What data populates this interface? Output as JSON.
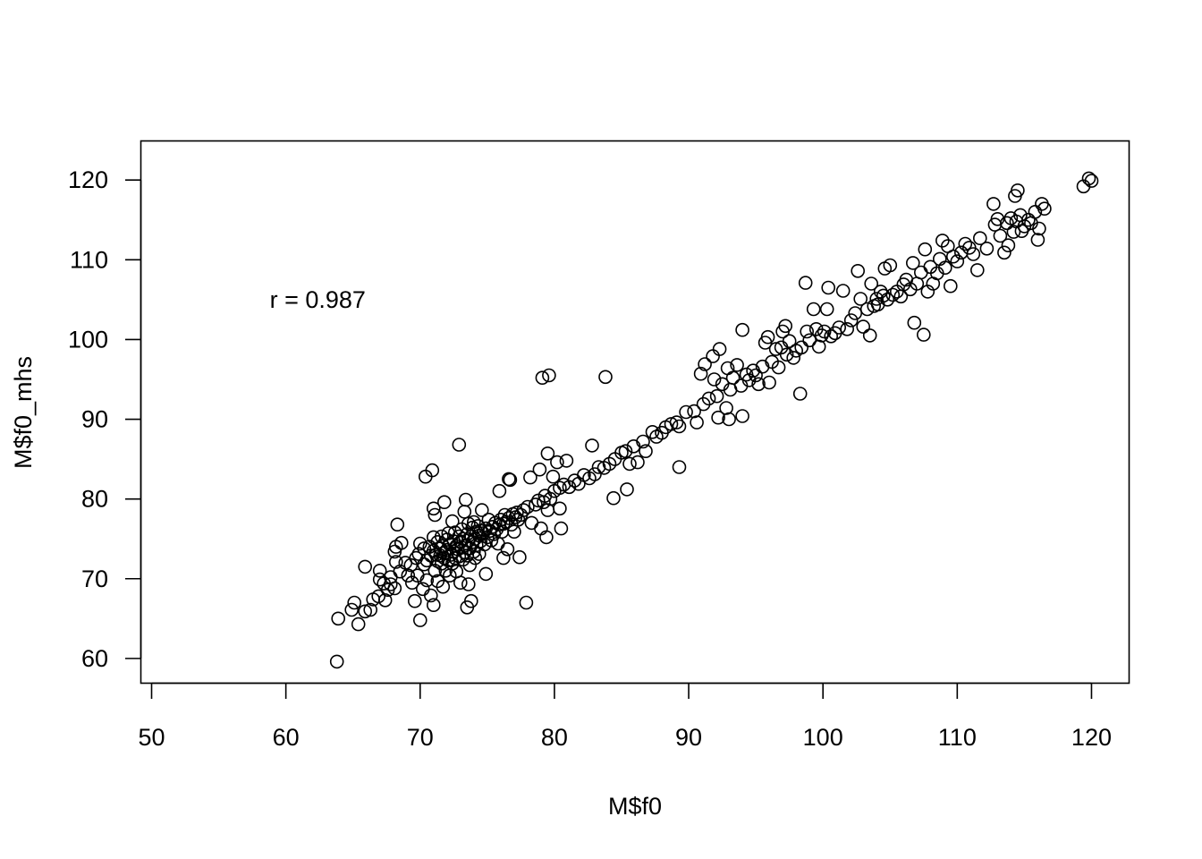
{
  "chart_data": {
    "type": "scatter",
    "title": "",
    "xlabel": "M$f0",
    "ylabel": "M$f0_mhs",
    "xlim": [
      49.2,
      122.8
    ],
    "ylim": [
      56.9,
      124.9
    ],
    "xticks": [
      50,
      60,
      70,
      80,
      90,
      100,
      110,
      120
    ],
    "yticks": [
      60,
      70,
      80,
      90,
      100,
      110,
      120
    ],
    "grid": false,
    "legend": "none",
    "marker": "open-circle",
    "color": "#000000",
    "annotation": {
      "text": "r = 0.987",
      "x": 58.8,
      "y": 105.0
    },
    "points": [
      [
        63.8,
        59.6
      ],
      [
        63.9,
        65.0
      ],
      [
        64.9,
        66.1
      ],
      [
        65.1,
        67.0
      ],
      [
        65.4,
        64.3
      ],
      [
        65.9,
        65.9
      ],
      [
        65.9,
        71.5
      ],
      [
        66.3,
        66.1
      ],
      [
        66.5,
        67.4
      ],
      [
        66.9,
        67.8
      ],
      [
        67.0,
        69.9
      ],
      [
        67.0,
        71.0
      ],
      [
        67.3,
        69.4
      ],
      [
        67.4,
        67.3
      ],
      [
        67.6,
        68.6
      ],
      [
        67.8,
        69.3
      ],
      [
        67.8,
        70.2
      ],
      [
        68.1,
        68.8
      ],
      [
        68.1,
        73.4
      ],
      [
        68.2,
        72.1
      ],
      [
        68.2,
        74.0
      ],
      [
        68.3,
        76.8
      ],
      [
        68.5,
        70.9
      ],
      [
        68.6,
        74.5
      ],
      [
        68.9,
        72.0
      ],
      [
        69.1,
        70.4
      ],
      [
        69.3,
        71.7
      ],
      [
        69.4,
        69.5
      ],
      [
        69.6,
        67.2
      ],
      [
        69.7,
        72.6
      ],
      [
        69.8,
        70.4
      ],
      [
        69.9,
        73.1
      ],
      [
        70.0,
        64.8
      ],
      [
        70.0,
        74.4
      ],
      [
        70.2,
        68.7
      ],
      [
        70.3,
        73.8
      ],
      [
        70.3,
        71.8
      ],
      [
        70.4,
        82.8
      ],
      [
        70.5,
        72.3
      ],
      [
        70.5,
        69.8
      ],
      [
        70.7,
        74.0
      ],
      [
        70.8,
        67.9
      ],
      [
        70.8,
        72.9
      ],
      [
        70.9,
        83.6
      ],
      [
        71.0,
        73.5
      ],
      [
        71.0,
        75.2
      ],
      [
        71.0,
        66.7
      ],
      [
        71.0,
        78.8
      ],
      [
        71.1,
        71.0
      ],
      [
        71.1,
        78.0
      ],
      [
        71.2,
        73.0
      ],
      [
        71.3,
        72.2
      ],
      [
        71.3,
        74.6
      ],
      [
        71.3,
        69.7
      ],
      [
        71.5,
        73.8
      ],
      [
        71.5,
        72.9
      ],
      [
        71.6,
        71.9
      ],
      [
        71.6,
        75.3
      ],
      [
        71.7,
        69.0
      ],
      [
        71.7,
        74.1
      ],
      [
        71.8,
        79.6
      ],
      [
        71.8,
        73.2
      ],
      [
        71.8,
        72.6
      ],
      [
        71.9,
        71.0
      ],
      [
        72.0,
        74.9
      ],
      [
        72.0,
        73.6
      ],
      [
        72.1,
        72.3
      ],
      [
        72.1,
        75.7
      ],
      [
        72.2,
        70.4
      ],
      [
        72.2,
        74.3
      ],
      [
        72.3,
        73.0
      ],
      [
        72.4,
        77.2
      ],
      [
        72.4,
        71.9
      ],
      [
        72.5,
        74.7
      ],
      [
        72.5,
        73.4
      ],
      [
        72.6,
        72.6
      ],
      [
        72.6,
        75.8
      ],
      [
        72.7,
        74.1
      ],
      [
        72.7,
        70.9
      ],
      [
        72.8,
        73.7
      ],
      [
        72.9,
        86.8
      ],
      [
        72.9,
        75.3
      ],
      [
        72.9,
        72.8
      ],
      [
        73.0,
        74.6
      ],
      [
        73.0,
        69.5
      ],
      [
        73.1,
        73.9
      ],
      [
        73.1,
        76.2
      ],
      [
        73.2,
        72.4
      ],
      [
        73.2,
        75.0
      ],
      [
        73.3,
        73.3
      ],
      [
        73.3,
        78.4
      ],
      [
        73.4,
        74.2
      ],
      [
        73.4,
        79.9
      ],
      [
        73.5,
        72.9
      ],
      [
        73.5,
        75.6
      ],
      [
        73.5,
        66.4
      ],
      [
        73.6,
        74.8
      ],
      [
        73.6,
        69.3
      ],
      [
        73.6,
        76.9
      ],
      [
        73.7,
        73.8
      ],
      [
        73.7,
        71.7
      ],
      [
        73.8,
        75.3
      ],
      [
        73.8,
        67.2
      ],
      [
        73.9,
        74.6
      ],
      [
        73.9,
        76.4
      ],
      [
        74.0,
        73.4
      ],
      [
        74.0,
        77.1
      ],
      [
        74.1,
        75.0
      ],
      [
        74.1,
        72.6
      ],
      [
        74.2,
        75.9
      ],
      [
        74.2,
        74.2
      ],
      [
        74.3,
        76.6
      ],
      [
        74.4,
        75.4
      ],
      [
        74.4,
        73.1
      ],
      [
        74.5,
        76.0
      ],
      [
        74.5,
        74.7
      ],
      [
        74.6,
        78.6
      ],
      [
        74.7,
        75.7
      ],
      [
        74.8,
        74.3
      ],
      [
        74.9,
        76.3
      ],
      [
        74.9,
        70.6
      ],
      [
        75.0,
        75.2
      ],
      [
        75.1,
        77.4
      ],
      [
        75.2,
        76.0
      ],
      [
        75.3,
        74.8
      ],
      [
        75.4,
        76.5
      ],
      [
        75.5,
        75.6
      ],
      [
        75.6,
        77.0
      ],
      [
        75.7,
        76.2
      ],
      [
        75.8,
        74.4
      ],
      [
        75.9,
        81.0
      ],
      [
        75.9,
        76.8
      ],
      [
        76.0,
        77.4
      ],
      [
        76.1,
        75.9
      ],
      [
        76.2,
        72.6
      ],
      [
        76.2,
        76.9
      ],
      [
        76.3,
        78.0
      ],
      [
        76.4,
        77.1
      ],
      [
        76.5,
        73.7
      ],
      [
        76.6,
        82.5
      ],
      [
        76.6,
        77.6
      ],
      [
        76.7,
        82.4
      ],
      [
        76.8,
        76.8
      ],
      [
        76.9,
        78.1
      ],
      [
        77.0,
        75.9
      ],
      [
        77.1,
        77.7
      ],
      [
        77.2,
        78.3
      ],
      [
        77.3,
        77.4
      ],
      [
        77.4,
        72.7
      ],
      [
        77.5,
        78.0
      ],
      [
        77.7,
        78.6
      ],
      [
        77.9,
        67.0
      ],
      [
        78.0,
        79.0
      ],
      [
        78.2,
        82.7
      ],
      [
        78.3,
        77.0
      ],
      [
        78.6,
        79.3
      ],
      [
        78.8,
        79.8
      ],
      [
        78.9,
        83.7
      ],
      [
        79.0,
        76.3
      ],
      [
        79.1,
        95.2
      ],
      [
        79.2,
        79.6
      ],
      [
        79.3,
        80.4
      ],
      [
        79.4,
        75.2
      ],
      [
        79.5,
        85.7
      ],
      [
        79.5,
        78.6
      ],
      [
        79.6,
        95.5
      ],
      [
        79.7,
        80.0
      ],
      [
        79.9,
        82.8
      ],
      [
        80.0,
        81.0
      ],
      [
        80.2,
        84.6
      ],
      [
        80.4,
        81.4
      ],
      [
        80.4,
        78.8
      ],
      [
        80.5,
        76.3
      ],
      [
        80.7,
        81.8
      ],
      [
        80.9,
        84.8
      ],
      [
        81.1,
        81.5
      ],
      [
        81.5,
        82.3
      ],
      [
        81.8,
        81.9
      ],
      [
        82.2,
        83.0
      ],
      [
        82.6,
        82.6
      ],
      [
        82.8,
        86.7
      ],
      [
        83.0,
        83.1
      ],
      [
        83.3,
        84.0
      ],
      [
        83.7,
        83.9
      ],
      [
        83.8,
        95.3
      ],
      [
        84.1,
        84.4
      ],
      [
        84.4,
        80.1
      ],
      [
        84.5,
        85.0
      ],
      [
        85.0,
        85.8
      ],
      [
        85.3,
        86.0
      ],
      [
        85.4,
        81.2
      ],
      [
        85.6,
        84.4
      ],
      [
        85.9,
        86.6
      ],
      [
        86.2,
        84.6
      ],
      [
        86.6,
        87.2
      ],
      [
        86.8,
        86.0
      ],
      [
        87.3,
        88.4
      ],
      [
        87.6,
        87.8
      ],
      [
        88.0,
        88.3
      ],
      [
        88.3,
        89.0
      ],
      [
        88.7,
        89.4
      ],
      [
        89.1,
        89.6
      ],
      [
        89.3,
        84.0
      ],
      [
        89.3,
        89.1
      ],
      [
        89.8,
        90.9
      ],
      [
        90.4,
        91.0
      ],
      [
        90.6,
        89.6
      ],
      [
        90.9,
        95.7
      ],
      [
        91.1,
        91.9
      ],
      [
        91.2,
        96.9
      ],
      [
        91.5,
        92.6
      ],
      [
        91.8,
        97.9
      ],
      [
        91.9,
        95.0
      ],
      [
        92.1,
        92.9
      ],
      [
        92.2,
        90.2
      ],
      [
        92.3,
        98.8
      ],
      [
        92.5,
        94.4
      ],
      [
        92.8,
        91.4
      ],
      [
        92.9,
        96.4
      ],
      [
        93.0,
        90.0
      ],
      [
        93.1,
        93.7
      ],
      [
        93.3,
        95.2
      ],
      [
        93.6,
        96.8
      ],
      [
        93.9,
        94.2
      ],
      [
        94.0,
        90.4
      ],
      [
        94.0,
        101.2
      ],
      [
        94.3,
        95.6
      ],
      [
        94.5,
        94.9
      ],
      [
        94.8,
        96.1
      ],
      [
        95.0,
        95.5
      ],
      [
        95.2,
        94.4
      ],
      [
        95.5,
        96.6
      ],
      [
        95.7,
        99.6
      ],
      [
        95.9,
        100.3
      ],
      [
        96.0,
        94.6
      ],
      [
        96.2,
        97.2
      ],
      [
        96.5,
        98.8
      ],
      [
        96.7,
        96.5
      ],
      [
        96.9,
        99.0
      ],
      [
        97.0,
        101.0
      ],
      [
        97.2,
        101.7
      ],
      [
        97.3,
        98.1
      ],
      [
        97.5,
        99.8
      ],
      [
        97.8,
        97.7
      ],
      [
        98.0,
        98.6
      ],
      [
        98.3,
        93.2
      ],
      [
        98.4,
        99.0
      ],
      [
        98.7,
        107.1
      ],
      [
        98.8,
        101.0
      ],
      [
        99.0,
        99.9
      ],
      [
        99.3,
        103.8
      ],
      [
        99.5,
        101.3
      ],
      [
        99.7,
        99.1
      ],
      [
        99.9,
        100.5
      ],
      [
        100.1,
        101.0
      ],
      [
        100.3,
        103.8
      ],
      [
        100.4,
        106.5
      ],
      [
        100.6,
        100.4
      ],
      [
        100.9,
        100.8
      ],
      [
        101.2,
        101.5
      ],
      [
        101.5,
        106.1
      ],
      [
        101.8,
        101.3
      ],
      [
        102.1,
        102.4
      ],
      [
        102.4,
        103.3
      ],
      [
        102.6,
        108.6
      ],
      [
        102.8,
        105.1
      ],
      [
        103.0,
        101.6
      ],
      [
        103.3,
        103.8
      ],
      [
        103.5,
        100.5
      ],
      [
        103.6,
        107.0
      ],
      [
        103.8,
        104.2
      ],
      [
        104.0,
        105.1
      ],
      [
        104.1,
        104.4
      ],
      [
        104.3,
        106.0
      ],
      [
        104.5,
        105.5
      ],
      [
        104.6,
        108.9
      ],
      [
        104.8,
        105.0
      ],
      [
        105.0,
        109.3
      ],
      [
        105.2,
        105.6
      ],
      [
        105.5,
        106.0
      ],
      [
        105.8,
        105.4
      ],
      [
        106.0,
        106.9
      ],
      [
        106.2,
        107.5
      ],
      [
        106.5,
        106.3
      ],
      [
        106.7,
        109.6
      ],
      [
        106.8,
        102.1
      ],
      [
        107.0,
        107.0
      ],
      [
        107.3,
        108.4
      ],
      [
        107.5,
        100.6
      ],
      [
        107.6,
        111.3
      ],
      [
        107.8,
        106.0
      ],
      [
        108.0,
        109.1
      ],
      [
        108.2,
        107.0
      ],
      [
        108.5,
        108.3
      ],
      [
        108.7,
        110.1
      ],
      [
        108.9,
        112.4
      ],
      [
        109.1,
        109.0
      ],
      [
        109.3,
        111.7
      ],
      [
        109.5,
        106.7
      ],
      [
        109.7,
        110.4
      ],
      [
        110.0,
        109.8
      ],
      [
        110.3,
        110.9
      ],
      [
        110.6,
        112.0
      ],
      [
        110.9,
        111.5
      ],
      [
        111.2,
        110.7
      ],
      [
        111.5,
        108.7
      ],
      [
        111.7,
        112.7
      ],
      [
        112.2,
        111.4
      ],
      [
        112.7,
        117.0
      ],
      [
        112.8,
        114.4
      ],
      [
        113.0,
        115.1
      ],
      [
        113.2,
        113.0
      ],
      [
        113.5,
        110.9
      ],
      [
        113.7,
        114.6
      ],
      [
        113.8,
        111.8
      ],
      [
        114.0,
        115.2
      ],
      [
        114.2,
        113.5
      ],
      [
        114.3,
        118.0
      ],
      [
        114.4,
        114.8
      ],
      [
        114.5,
        118.7
      ],
      [
        114.7,
        115.6
      ],
      [
        114.8,
        113.6
      ],
      [
        115.0,
        114.2
      ],
      [
        115.3,
        115.0
      ],
      [
        115.5,
        114.6
      ],
      [
        115.8,
        116.0
      ],
      [
        116.0,
        112.5
      ],
      [
        116.1,
        113.9
      ],
      [
        116.3,
        117.0
      ],
      [
        116.5,
        116.4
      ],
      [
        119.4,
        119.2
      ],
      [
        119.8,
        120.2
      ],
      [
        120.0,
        119.9
      ]
    ]
  }
}
